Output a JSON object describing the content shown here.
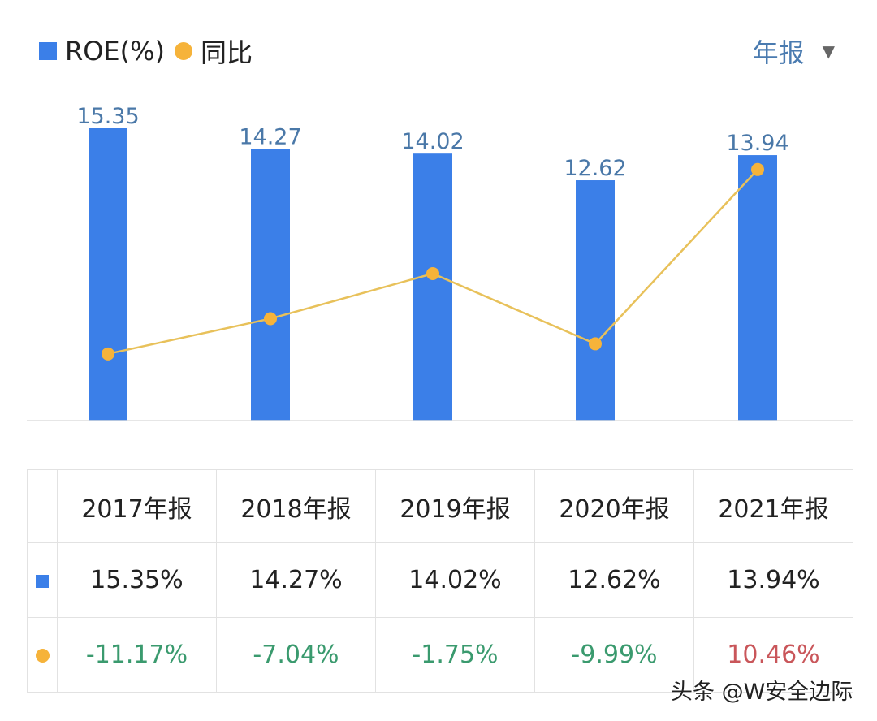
{
  "legend": {
    "roe": "ROE(%)",
    "yoy": "同比"
  },
  "period_selector": {
    "label": "年报",
    "icon": "triangle-down-icon"
  },
  "chart_data": {
    "type": "bar+line",
    "categories": [
      "2017年报",
      "2018年报",
      "2019年报",
      "2020年报",
      "2021年报"
    ],
    "series": [
      {
        "name": "ROE(%)",
        "type": "bar",
        "values": [
          15.35,
          14.27,
          14.02,
          12.62,
          13.94
        ],
        "labels": [
          "15.35",
          "14.27",
          "14.02",
          "12.62",
          "13.94"
        ],
        "color": "#3b7fe8"
      },
      {
        "name": "同比",
        "type": "line",
        "values": [
          -11.17,
          -7.04,
          -1.75,
          -9.99,
          10.46
        ],
        "color": "#f6b33a"
      }
    ],
    "ylim_left": [
      0,
      15.35
    ],
    "ylim_right": [
      -19,
      15.3
    ],
    "grid": false,
    "legend_position": "top-left"
  },
  "table": {
    "headers": [
      "2017年报",
      "2018年报",
      "2019年报",
      "2020年报",
      "2021年报"
    ],
    "roe": [
      "15.35%",
      "14.27%",
      "14.02%",
      "12.62%",
      "13.94%"
    ],
    "yoy": [
      "-11.17%",
      "-7.04%",
      "-1.75%",
      "-9.99%",
      "10.46%"
    ],
    "yoy_colors": [
      "#3a9a6e",
      "#3a9a6e",
      "#3a9a6e",
      "#3a9a6e",
      "#c9565a"
    ]
  },
  "watermark": "头条 @W安全边际"
}
